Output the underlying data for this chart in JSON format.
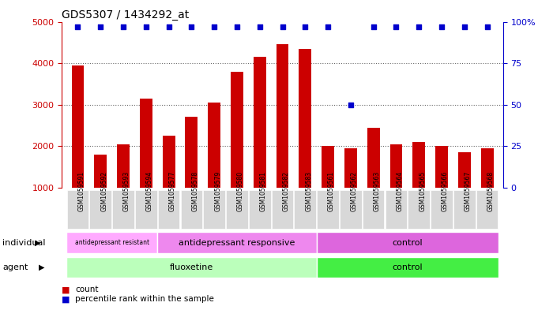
{
  "title": "GDS5307 / 1434292_at",
  "samples": [
    "GSM1059591",
    "GSM1059592",
    "GSM1059593",
    "GSM1059594",
    "GSM1059577",
    "GSM1059578",
    "GSM1059579",
    "GSM1059580",
    "GSM1059581",
    "GSM1059582",
    "GSM1059583",
    "GSM1059561",
    "GSM1059562",
    "GSM1059563",
    "GSM1059564",
    "GSM1059565",
    "GSM1059566",
    "GSM1059567",
    "GSM1059568"
  ],
  "counts": [
    3950,
    1800,
    2050,
    3150,
    2250,
    2700,
    3050,
    3800,
    4150,
    4450,
    4350,
    2000,
    1950,
    2450,
    2050,
    2100,
    2000,
    1850,
    1950
  ],
  "percentile_ranks": [
    97,
    97,
    97,
    97,
    97,
    97,
    97,
    97,
    97,
    97,
    97,
    97,
    50,
    97,
    97,
    97,
    97,
    97,
    97
  ],
  "bar_color": "#cc0000",
  "dot_color": "#0000cc",
  "ylim_left": [
    1000,
    5000
  ],
  "ylim_right": [
    0,
    100
  ],
  "yticks_left": [
    1000,
    2000,
    3000,
    4000,
    5000
  ],
  "yticks_right": [
    0,
    25,
    50,
    75,
    100
  ],
  "agent_groups": [
    {
      "label": "fluoxetine",
      "start": 0,
      "end": 11,
      "color": "#bbffbb"
    },
    {
      "label": "control",
      "start": 11,
      "end": 19,
      "color": "#44ee44"
    }
  ],
  "individual_groups": [
    {
      "label": "antidepressant resistant",
      "start": 0,
      "end": 4,
      "color": "#ffaaff"
    },
    {
      "label": "antidepressant responsive",
      "start": 4,
      "end": 11,
      "color": "#ee88ee"
    },
    {
      "label": "control",
      "start": 11,
      "end": 19,
      "color": "#dd66dd"
    }
  ],
  "legend_items": [
    {
      "color": "#cc0000",
      "label": "count"
    },
    {
      "color": "#0000cc",
      "label": "percentile rank within the sample"
    }
  ],
  "agent_label": "agent",
  "individual_label": "individual",
  "tick_bg_color": "#d8d8d8",
  "chart_bg_color": "#ffffff",
  "grid_color": "#666666"
}
